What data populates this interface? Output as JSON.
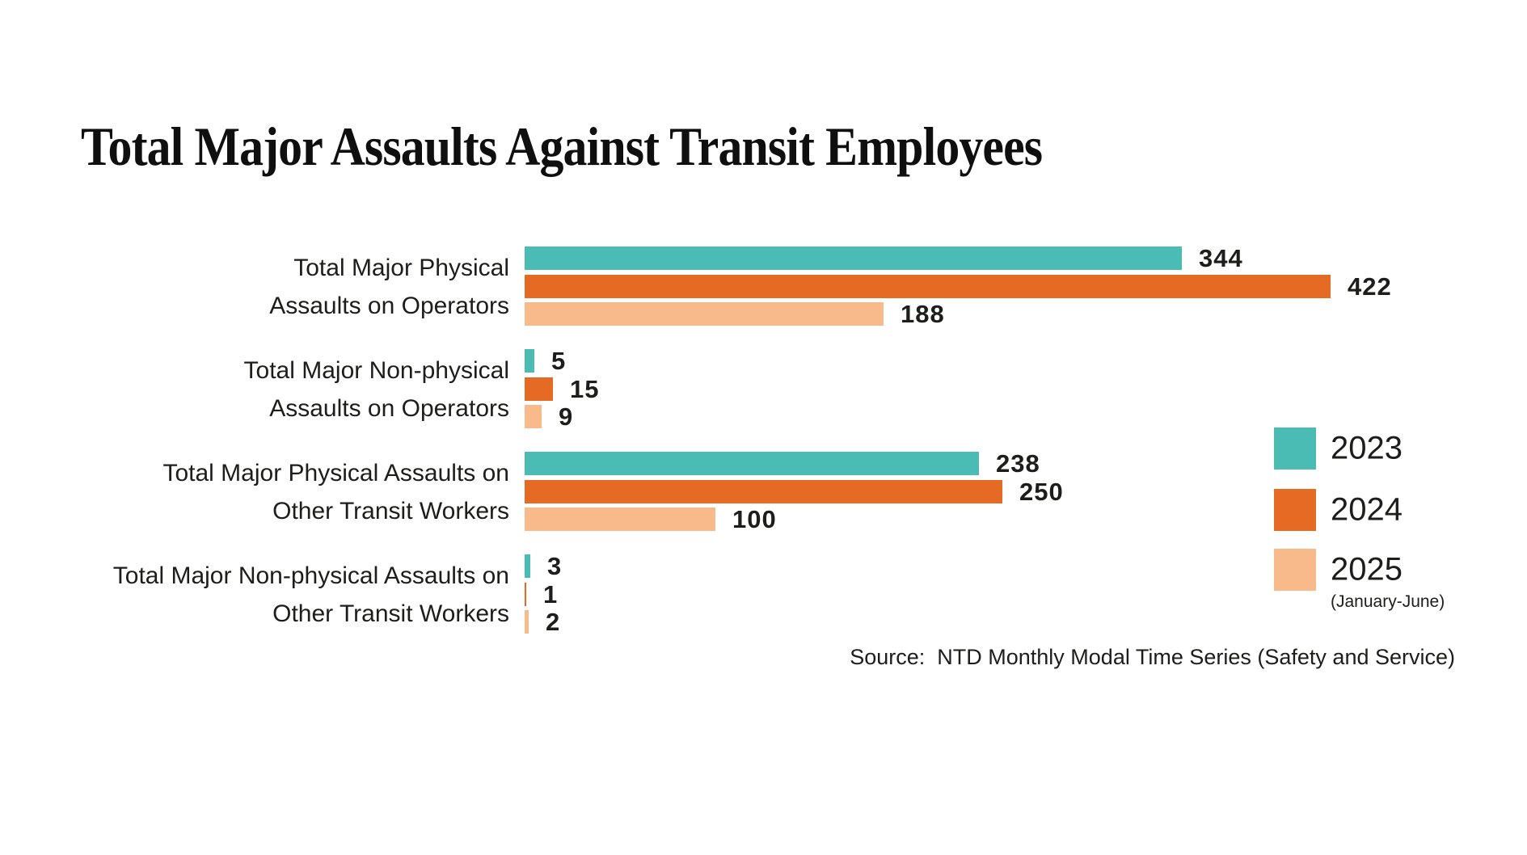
{
  "title": "Total Major Assaults Against Transit Employees",
  "source": "Source:  NTD Monthly Modal Time Series (Safety and Service)",
  "colors": {
    "background": "#ffffff",
    "text": "#1d1d1b",
    "title_text": "#0f0f0f",
    "teal": "#4abcb4",
    "orange": "#e56a24",
    "peach": "#f8ba8a"
  },
  "chart_data": {
    "type": "bar",
    "orientation": "horizontal",
    "title": "Total Major Assaults Against Transit Employees",
    "categories": [
      [
        "Total Major Physical",
        "Assaults on Operators"
      ],
      [
        "Total Major Non-physical",
        "Assaults on Operators"
      ],
      [
        "Total Major Physical Assaults on",
        "Other Transit Workers"
      ],
      [
        "Total Major Non-physical Assaults on",
        "Other Transit Workers"
      ]
    ],
    "series": [
      {
        "name": "2023",
        "color": "#4abcb4",
        "values": [
          344,
          5,
          238,
          3
        ]
      },
      {
        "name": "2024",
        "color": "#e56a24",
        "values": [
          422,
          15,
          250,
          1
        ]
      },
      {
        "name": "2025",
        "note": "(January-June)",
        "color": "#f8ba8a",
        "values": [
          188,
          9,
          100,
          2
        ]
      }
    ],
    "value_labels": true,
    "xlim": [
      0,
      422
    ],
    "grid": false,
    "legend_position": "right",
    "source": "Source:  NTD Monthly Modal Time Series (Safety and Service)"
  }
}
